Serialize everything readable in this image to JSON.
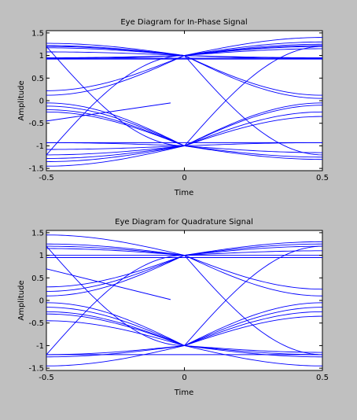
{
  "figure": {
    "background": "#c0c0c0",
    "trace_color": "#0000ff"
  },
  "chart_data": [
    {
      "type": "line",
      "title": "Eye Diagram for In-Phase Signal",
      "xlabel": "Time",
      "ylabel": "Amplitude",
      "xlim": [
        -0.5,
        0.5
      ],
      "ylim": [
        -1.55,
        1.55
      ],
      "xticks": [
        -0.5,
        0,
        0.5
      ],
      "xtick_labels": [
        "-0.5",
        "0",
        "0.5"
      ],
      "yticks": [
        -1.5,
        -1,
        -0.5,
        0,
        0.5,
        1,
        1.5
      ],
      "ytick_labels": [
        "-1.5",
        "-1",
        "-0.5",
        "0",
        "0.5",
        "1",
        "1.5"
      ],
      "grid": false,
      "levels": {
        "left": [
          1.27,
          1.22,
          1.2,
          1.17,
          1.08,
          0.95,
          0.93,
          0.22,
          0.12,
          -0.05,
          -0.12,
          -0.2,
          -0.25,
          -0.93,
          -1.08,
          -1.2,
          -1.28,
          -1.35,
          -1.45
        ],
        "right": [
          1.4,
          1.3,
          1.25,
          1.22,
          1.2,
          1.15,
          0.95,
          0.93,
          0.12,
          0.05,
          -0.05,
          -0.1,
          -0.25,
          -0.35,
          -0.93,
          -1.15,
          -1.25,
          -1.3
        ],
        "flat_top": [
          0.94,
          0.92
        ],
        "flat_bottom": [
          -0.93
        ]
      },
      "partial_trace": {
        "x": [
          -0.5,
          -0.05
        ],
        "y": [
          -0.45,
          -0.05
        ]
      }
    },
    {
      "type": "line",
      "title": "Eye Diagram for Quadrature Signal",
      "xlabel": "Time",
      "ylabel": "Amplitude",
      "xlim": [
        -0.5,
        0.5
      ],
      "ylim": [
        -1.55,
        1.55
      ],
      "xticks": [
        -0.5,
        0,
        0.5
      ],
      "xtick_labels": [
        "-0.5",
        "0",
        "0.5"
      ],
      "yticks": [
        -1.5,
        -1,
        -0.5,
        0,
        0.5,
        1,
        1.5
      ],
      "ytick_labels": [
        "-1.5",
        "-1",
        "-0.5",
        "0",
        "0.5",
        "1",
        "1.5"
      ],
      "grid": false,
      "levels": {
        "left": [
          1.45,
          1.25,
          1.2,
          1.15,
          1.0,
          0.3,
          0.2,
          0.1,
          -0.05,
          -0.15,
          -0.25,
          -0.3,
          -0.45,
          -1.2,
          -1.25,
          -1.45
        ],
        "right": [
          1.3,
          1.25,
          1.2,
          1.1,
          1.0,
          0.25,
          0.1,
          -0.05,
          -0.15,
          -0.25,
          -0.35,
          -1.15,
          -1.2,
          -1.25,
          -1.45
        ],
        "flat_top": [
          0.95
        ],
        "flat_bottom": [
          -1.2
        ]
      },
      "partial_trace": {
        "x": [
          -0.5,
          -0.05
        ],
        "y": [
          0.7,
          0.02
        ]
      }
    }
  ]
}
